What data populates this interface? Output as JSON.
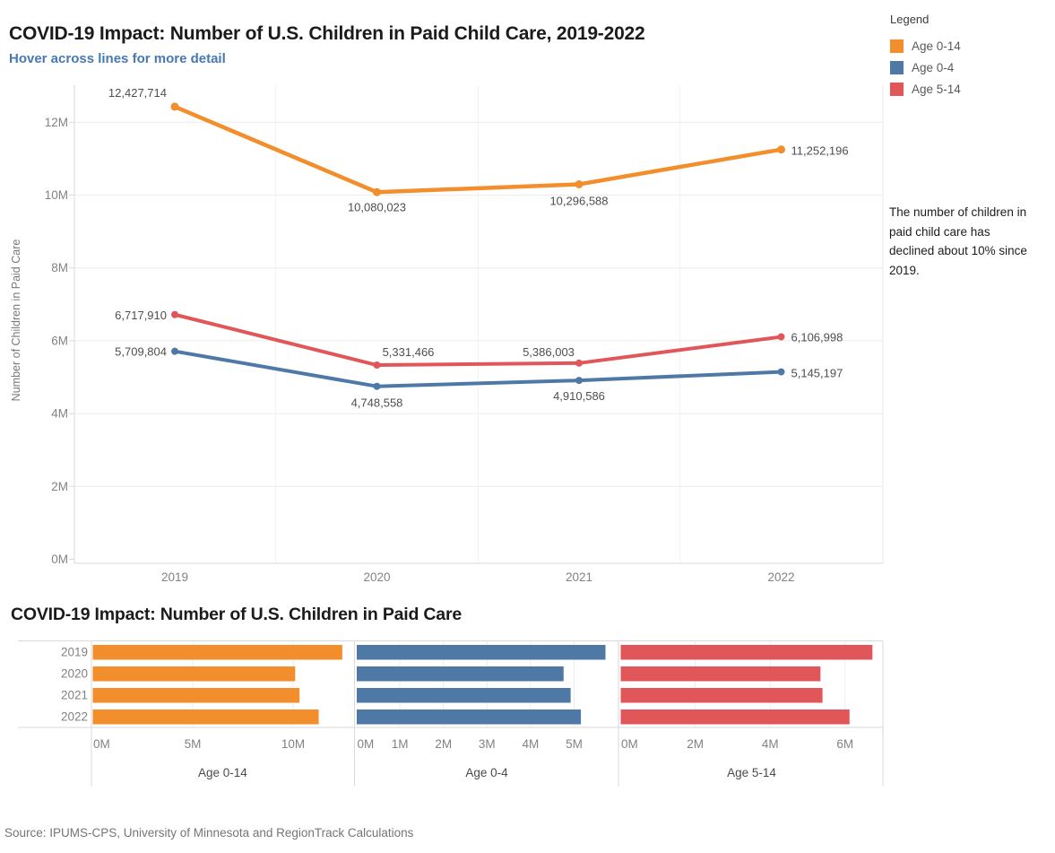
{
  "header": {
    "title": "COVID-19 Impact: Number of U.S. Children in Paid Child Care, 2019-2022",
    "subtitle": "Hover across lines for more detail"
  },
  "legend": {
    "title": "Legend",
    "items": [
      {
        "label": "Age 0-14",
        "color": "#F28E2B"
      },
      {
        "label": "Age 0-4",
        "color": "#4E79A7"
      },
      {
        "label": "Age 5-14",
        "color": "#E15759"
      }
    ]
  },
  "annotation": {
    "lines": [
      "The number of children in",
      "paid child care has",
      "declined about 10% since",
      "2019."
    ]
  },
  "source": {
    "text": "Source: IPUMS-CPS, University of Minnesota and RegionTrack Calculations"
  },
  "colors": {
    "orange": "#F28E2B",
    "blue": "#4E79A7",
    "red": "#E15759"
  },
  "chart_data": [
    {
      "type": "line",
      "title": "COVID-19 Impact: Number of U.S. Children in Paid Child Care, 2019-2022",
      "subtitle": "Hover across lines for more detail",
      "xlabel": "",
      "ylabel": "Number of Children in Paid Care",
      "x": [
        2019,
        2020,
        2021,
        2022
      ],
      "xticklabels": [
        "2019",
        "2020",
        "2021",
        "2022"
      ],
      "yticks": [
        "0M",
        "2M",
        "4M",
        "6M",
        "8M",
        "10M",
        "12M"
      ],
      "ytick_values": [
        0,
        2000000,
        4000000,
        6000000,
        8000000,
        10000000,
        12000000
      ],
      "ylim": [
        0,
        12000000
      ],
      "grid": true,
      "legend_position": "top-right",
      "series": [
        {
          "name": "Age 0-14",
          "color": "#F28E2B",
          "values": [
            12427714,
            10080023,
            10296588,
            11252196
          ],
          "labels": [
            "12,427,714",
            "10,080,023",
            "10,296,588",
            "11,252,196"
          ]
        },
        {
          "name": "Age 0-4",
          "color": "#4E79A7",
          "values": [
            5709804,
            4748558,
            4910586,
            5145197
          ],
          "labels": [
            "5,709,804",
            "4,748,558",
            "4,910,586",
            "5,145,197"
          ]
        },
        {
          "name": "Age 5-14",
          "color": "#E15759",
          "values": [
            6717910,
            5331466,
            5386003,
            6106998
          ],
          "labels": [
            "6,717,910",
            "5,331,466",
            "5,386,003",
            "6,106,998"
          ]
        }
      ]
    },
    {
      "type": "bar",
      "orientation": "horizontal",
      "title": "COVID-19 Impact: Number of U.S. Children in Paid Care",
      "categories": [
        "2019",
        "2020",
        "2021",
        "2022"
      ],
      "panels": [
        {
          "name": "Age 0-14",
          "color": "#F28E2B",
          "values": [
            12427714,
            10080023,
            10296588,
            11252196
          ],
          "xticks": [
            "0M",
            "5M",
            "10M"
          ],
          "xtick_values": [
            0,
            5000000,
            10000000
          ]
        },
        {
          "name": "Age 0-4",
          "color": "#4E79A7",
          "values": [
            5709804,
            4748558,
            4910586,
            5145197
          ],
          "xticks": [
            "0M",
            "1M",
            "2M",
            "3M",
            "4M",
            "5M"
          ],
          "xtick_values": [
            0,
            1000000,
            2000000,
            3000000,
            4000000,
            5000000
          ]
        },
        {
          "name": "Age 5-14",
          "color": "#E15759",
          "values": [
            6717910,
            5331466,
            5386003,
            6106998
          ],
          "xticks": [
            "0M",
            "2M",
            "4M",
            "6M"
          ],
          "xtick_values": [
            0,
            2000000,
            4000000,
            6000000
          ]
        }
      ]
    }
  ]
}
